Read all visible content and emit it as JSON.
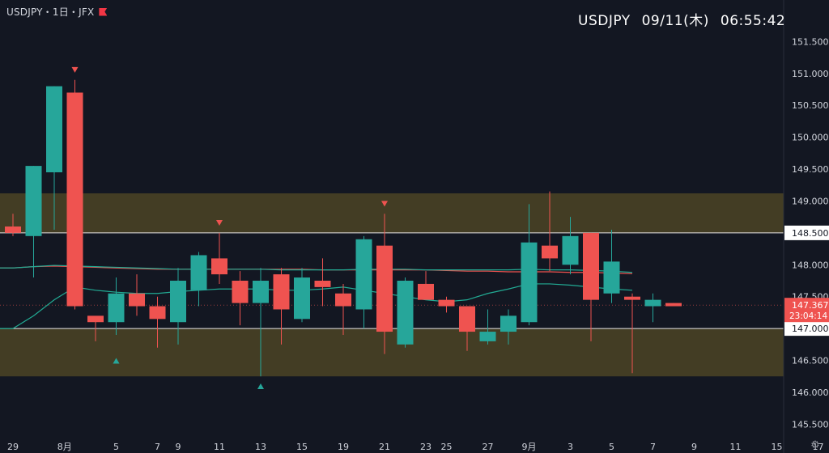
{
  "header": {
    "symbol_text": "USDJPY・1日・JFX",
    "flag_icon": "flag-icon"
  },
  "clock": {
    "symbol": "USDJPY",
    "date": "09/11(木)",
    "time": "06:55:42"
  },
  "settings_icon": "settings-gear-icon",
  "colors": {
    "background": "#131722",
    "bull": "#26a69a",
    "bear": "#ef5350",
    "zone_fill": "#433d24",
    "ma_green": "#22ab94",
    "ma_red": "#ef5350",
    "grid_text": "#d1d4dc"
  },
  "chart_data": {
    "type": "candlestick",
    "y_ticks": [
      "151.500",
      "151.000",
      "150.500",
      "150.000",
      "149.500",
      "149.000",
      "148.000",
      "147.500",
      "146.500",
      "146.000",
      "145.500"
    ],
    "y_tick_values": [
      151.5,
      151.0,
      150.5,
      150.0,
      149.5,
      149.0,
      148.0,
      147.5,
      146.5,
      146.0,
      145.5
    ],
    "ylim": [
      145.2,
      152.0
    ],
    "level_labels": [
      {
        "text": "148.500",
        "value": 148.5
      },
      {
        "text": "147.000",
        "value": 147.0
      }
    ],
    "current_price": {
      "text": "147.367",
      "countdown": "23:04:14",
      "value": 147.367
    },
    "zones": [
      {
        "from": 148.5,
        "to": 149.12
      },
      {
        "from": 146.25,
        "to": 147.0
      }
    ],
    "horizontal_lines": [
      148.5,
      147.0
    ],
    "x_labels": [
      "29",
      "8月",
      "5",
      "7",
      "9",
      "11",
      "13",
      "15",
      "19",
      "21",
      "23",
      "25",
      "27",
      "9月",
      "3",
      "5",
      "7",
      "9",
      "11",
      "15",
      "17"
    ],
    "x_label_bars": [
      0,
      2.5,
      5,
      7,
      8,
      10,
      12,
      14,
      16,
      18,
      20,
      21,
      23,
      25,
      27,
      29,
      31,
      33,
      35,
      37,
      39
    ],
    "candles": [
      [
        148.6,
        148.8,
        148.45,
        148.5
      ],
      [
        148.45,
        149.55,
        147.8,
        149.55
      ],
      [
        149.45,
        150.8,
        148.55,
        150.8
      ],
      [
        150.7,
        150.9,
        147.3,
        147.35
      ],
      [
        147.2,
        147.15,
        146.8,
        147.1
      ],
      [
        147.1,
        147.8,
        146.9,
        147.55
      ],
      [
        147.55,
        147.85,
        147.2,
        147.35
      ],
      [
        147.35,
        147.5,
        146.7,
        147.15
      ],
      [
        147.1,
        147.95,
        146.75,
        147.75
      ],
      [
        147.6,
        148.2,
        147.35,
        148.15
      ],
      [
        148.1,
        148.5,
        147.7,
        147.85
      ],
      [
        147.75,
        147.9,
        147.05,
        147.4
      ],
      [
        147.4,
        147.95,
        146.25,
        147.75
      ],
      [
        147.85,
        147.95,
        146.75,
        147.3
      ],
      [
        147.15,
        147.95,
        147.1,
        147.8
      ],
      [
        147.75,
        148.1,
        147.35,
        147.65
      ],
      [
        147.55,
        147.7,
        146.9,
        147.35
      ],
      [
        147.3,
        148.45,
        147.0,
        148.4
      ],
      [
        148.3,
        148.8,
        146.6,
        146.95
      ],
      [
        146.75,
        147.8,
        146.7,
        147.75
      ],
      [
        147.7,
        147.9,
        147.5,
        147.45
      ],
      [
        147.45,
        147.5,
        147.25,
        147.35
      ],
      [
        147.35,
        147.35,
        146.65,
        146.95
      ],
      [
        146.8,
        147.3,
        146.75,
        146.95
      ],
      [
        146.95,
        147.3,
        146.75,
        147.2
      ],
      [
        147.1,
        148.95,
        147.05,
        148.35
      ],
      [
        148.3,
        149.15,
        147.9,
        148.1
      ],
      [
        148.0,
        148.75,
        147.85,
        148.45
      ],
      [
        148.5,
        148.5,
        146.8,
        147.45
      ],
      [
        147.55,
        148.55,
        147.4,
        148.05
      ],
      [
        147.5,
        147.55,
        146.3,
        147.45
      ],
      [
        147.35,
        147.55,
        147.1,
        147.45
      ],
      [
        147.4,
        147.4,
        147.35,
        147.35
      ]
    ],
    "ma_green": [
      147.95,
      147.97,
      147.99,
      147.98,
      147.97,
      147.96,
      147.95,
      147.94,
      147.93,
      147.93,
      147.93,
      147.93,
      147.93,
      147.92,
      147.92,
      147.92,
      147.92,
      147.93,
      147.93,
      147.93,
      147.92,
      147.92,
      147.92,
      147.92,
      147.92,
      147.93,
      147.92,
      147.92,
      147.91,
      147.9,
      147.88
    ],
    "ma_red": [
      147.95,
      147.97,
      147.98,
      147.97,
      147.96,
      147.95,
      147.94,
      147.93,
      147.93,
      147.93,
      147.93,
      147.93,
      147.93,
      147.93,
      147.93,
      147.92,
      147.92,
      147.92,
      147.92,
      147.92,
      147.92,
      147.91,
      147.9,
      147.9,
      147.89,
      147.89,
      147.89,
      147.88,
      147.88,
      147.87,
      147.86
    ],
    "ma_short": [
      147.0,
      147.2,
      147.45,
      147.65,
      147.6,
      147.57,
      147.55,
      147.55,
      147.58,
      147.6,
      147.62,
      147.62,
      147.62,
      147.6,
      147.6,
      147.62,
      147.65,
      147.6,
      147.55,
      147.5,
      147.45,
      147.42,
      147.45,
      147.55,
      147.62,
      147.7,
      147.7,
      147.68,
      147.65,
      147.62,
      147.6
    ],
    "markers": [
      {
        "bar": 3,
        "dir": "down",
        "value": 151.05
      },
      {
        "bar": 5,
        "dir": "up",
        "value": 146.5
      },
      {
        "bar": 10,
        "dir": "down",
        "value": 148.65
      },
      {
        "bar": 12,
        "dir": "up",
        "value": 146.1
      },
      {
        "bar": 18,
        "dir": "down",
        "value": 148.95
      }
    ]
  }
}
